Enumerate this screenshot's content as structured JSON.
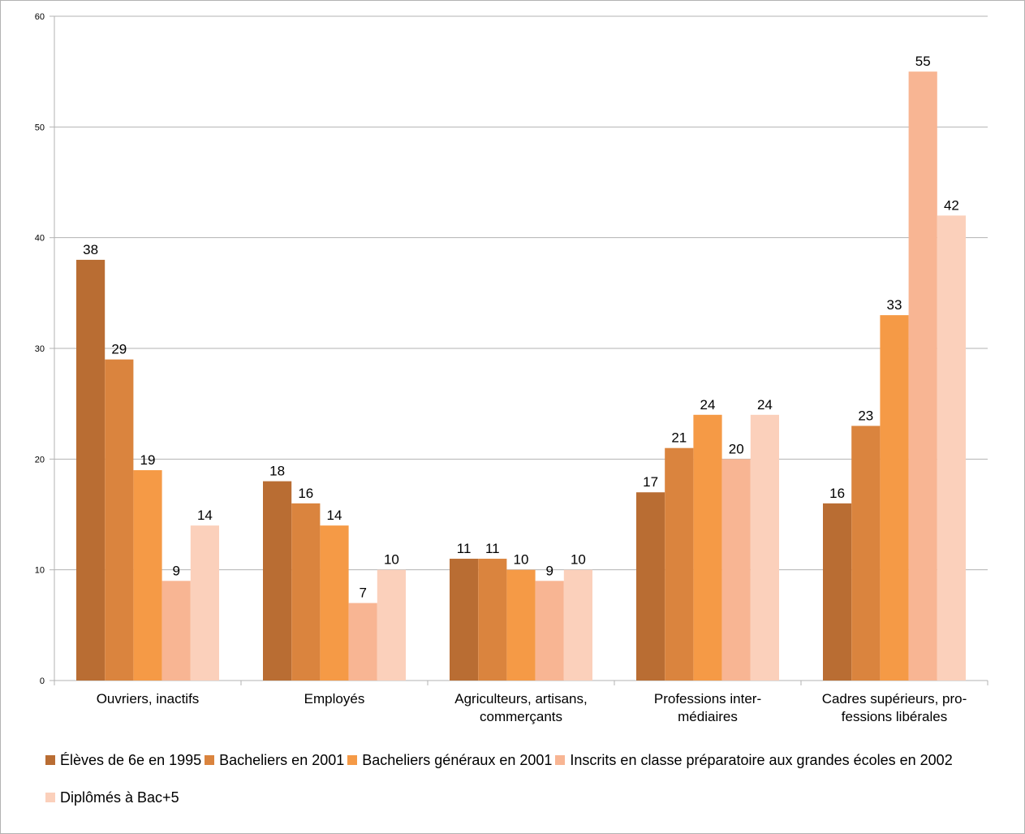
{
  "chart_data": {
    "type": "bar",
    "categories": [
      [
        "Ouvriers, inactifs"
      ],
      [
        "Employés"
      ],
      [
        "Agriculteurs, artisans,",
        "commerçants"
      ],
      [
        "Professions inter-",
        "médiaires"
      ],
      [
        "Cadres supérieurs, pro-",
        "fessions libérales"
      ]
    ],
    "series": [
      {
        "name": "Élèves de 6e en 1995",
        "color": "#b96d33",
        "values": [
          38,
          18,
          11,
          17,
          16
        ]
      },
      {
        "name": "Bacheliers en 2001",
        "color": "#da843e",
        "values": [
          29,
          16,
          11,
          21,
          23
        ]
      },
      {
        "name": "Bacheliers généraux en 2001",
        "color": "#f59a46",
        "values": [
          19,
          14,
          10,
          24,
          33
        ]
      },
      {
        "name": "Inscrits en classe préparatoire aux grandes écoles en 2002",
        "color": "#f8b593",
        "values": [
          9,
          7,
          9,
          20,
          55
        ]
      },
      {
        "name": "Diplômés à Bac+5",
        "color": "#fbd0bb",
        "values": [
          14,
          10,
          10,
          24,
          42
        ]
      }
    ],
    "ylim": [
      0,
      60
    ],
    "yticks": [
      0,
      10,
      20,
      30,
      40,
      50,
      60
    ],
    "grid": true,
    "legend_position": "bottom",
    "data_labels": true
  }
}
